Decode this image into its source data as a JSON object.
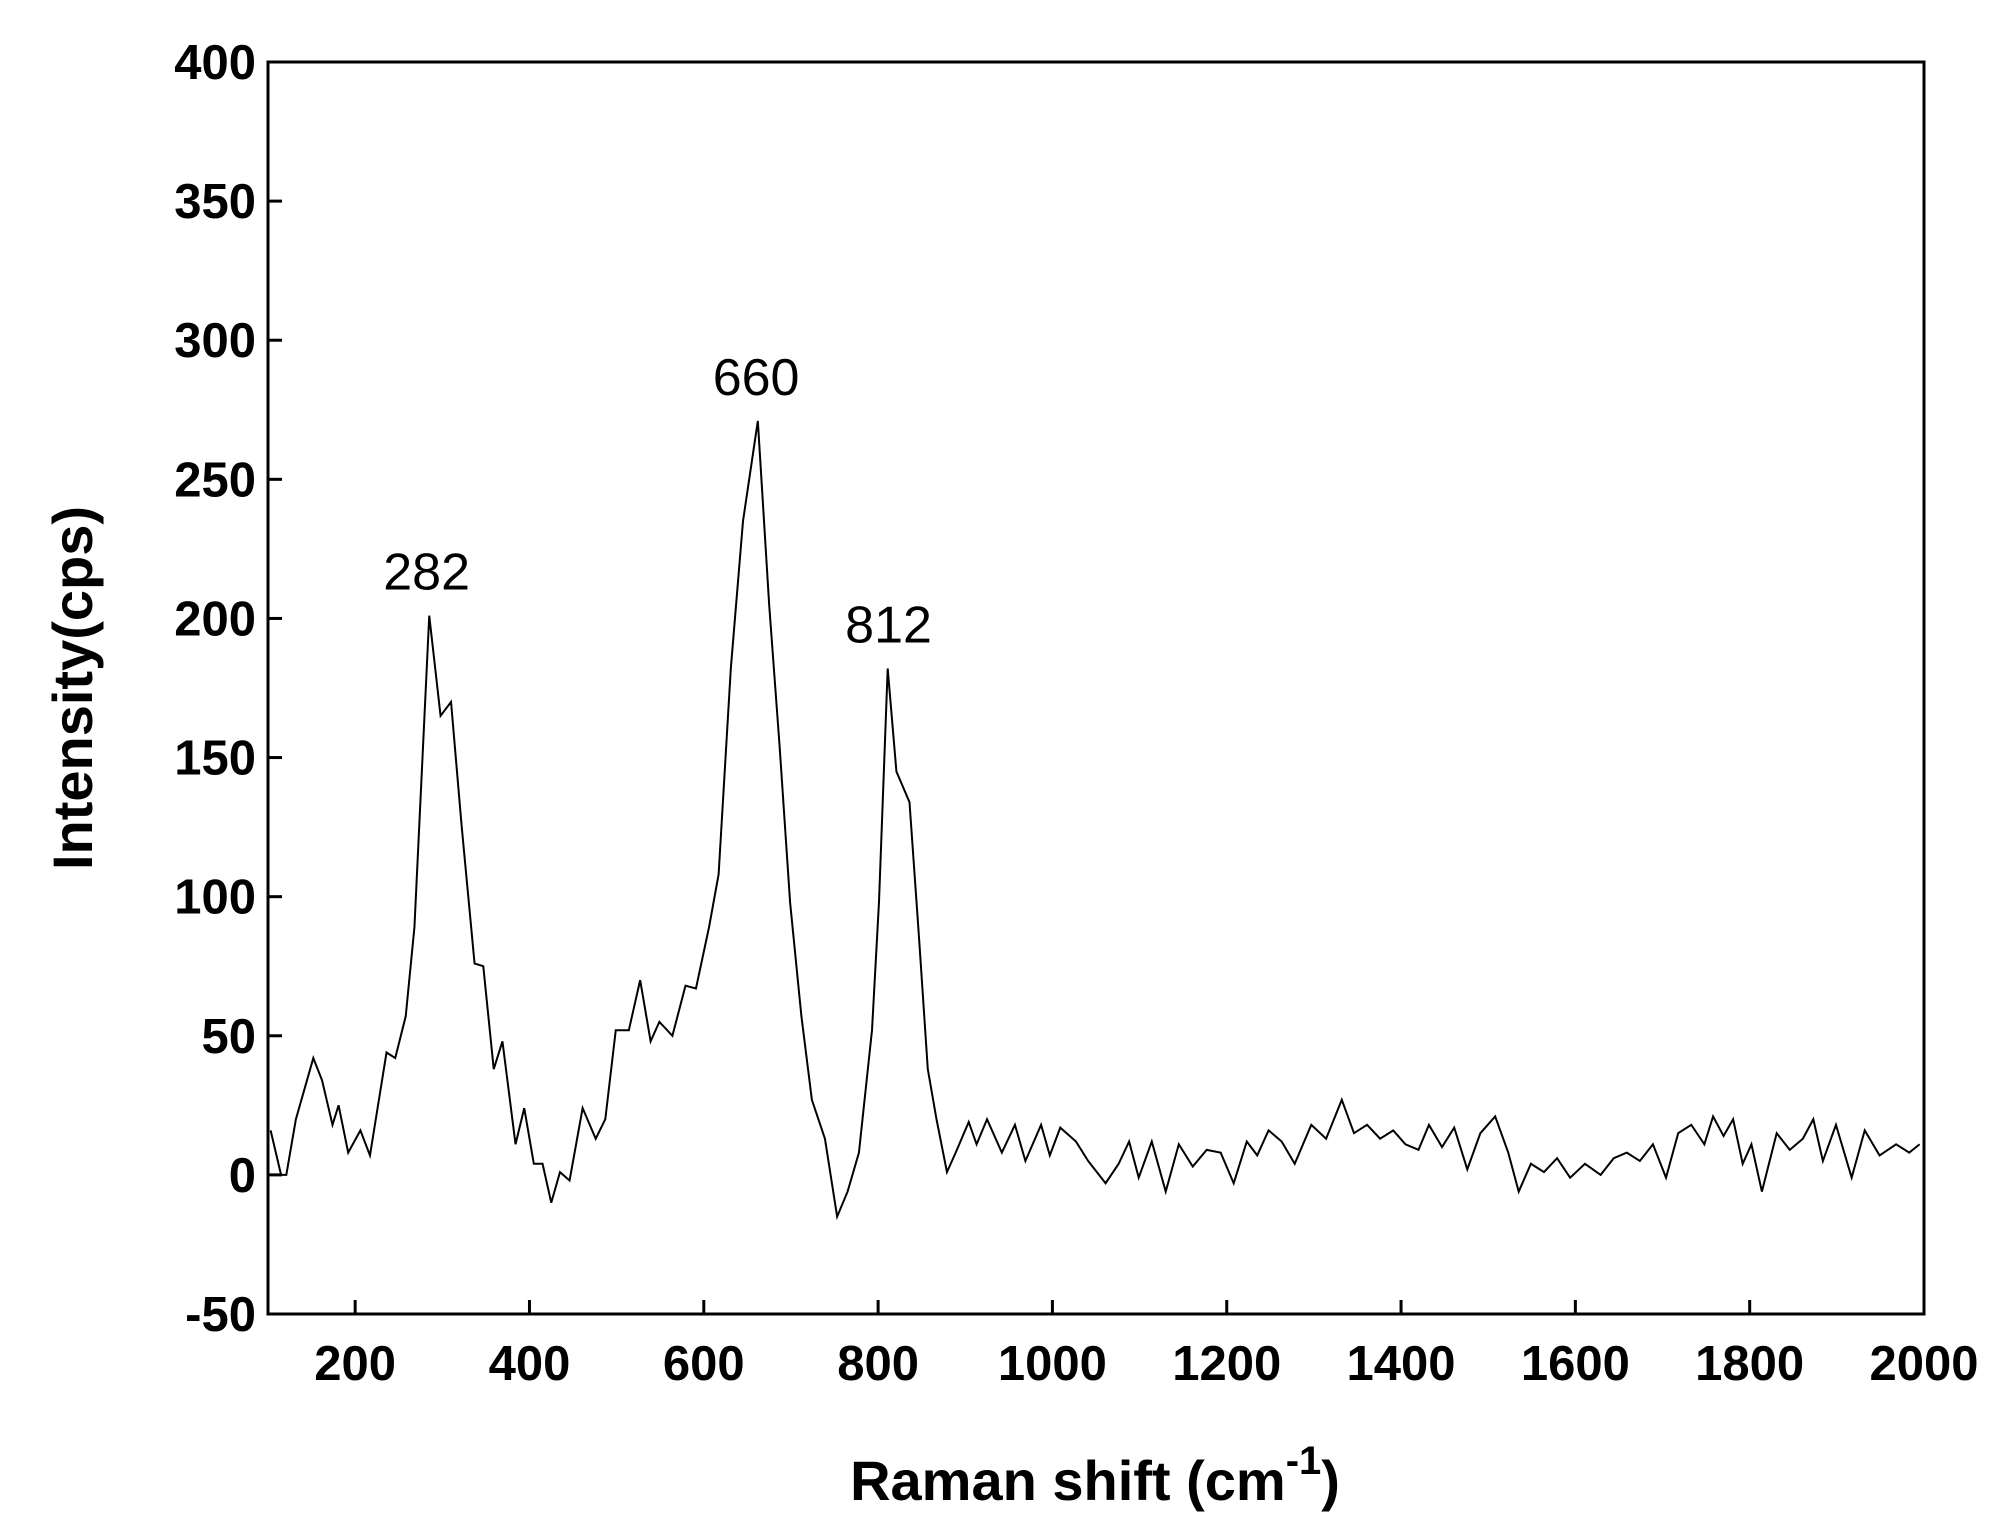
{
  "chart_data": {
    "type": "line",
    "xlabel": "Raman shift (cm",
    "xlabel_sup": "-1",
    "xlabel_end": ")",
    "ylabel": "Intensity(cps)",
    "x": [
      103,
      115,
      121,
      132,
      152,
      162,
      174,
      181,
      192,
      206,
      217,
      236,
      246,
      258,
      268,
      285,
      298,
      310,
      322,
      337,
      347,
      359,
      369,
      384,
      394,
      405,
      415,
      425,
      435,
      446,
      461,
      476,
      487,
      499,
      514,
      527,
      539,
      549,
      564,
      579,
      591,
      606,
      617,
      631,
      645,
      662,
      675,
      687,
      699,
      712,
      724,
      739,
      753,
      765,
      778,
      793,
      801,
      811,
      821,
      836,
      847,
      857,
      867,
      879,
      889,
      904,
      913,
      925,
      942,
      957,
      969,
      987,
      997,
      1009,
      1027,
      1041,
      1061,
      1076,
      1088,
      1099,
      1114,
      1130,
      1145,
      1161,
      1177,
      1193,
      1208,
      1223,
      1235,
      1248,
      1263,
      1278,
      1297,
      1314,
      1332,
      1346,
      1361,
      1376,
      1391,
      1405,
      1420,
      1432,
      1447,
      1461,
      1476,
      1491,
      1508,
      1523,
      1535,
      1549,
      1564,
      1579,
      1594,
      1611,
      1629,
      1644,
      1659,
      1674,
      1689,
      1704,
      1718,
      1733,
      1748,
      1758,
      1770,
      1781,
      1792,
      1802,
      1814,
      1831,
      1846,
      1861,
      1873,
      1884,
      1899,
      1917,
      1932,
      1949,
      1968,
      1983,
      1995
    ],
    "series": [
      {
        "color": "#000000",
        "values": [
          16,
          0,
          0,
          20,
          42,
          34,
          18,
          25,
          8,
          16,
          7,
          44,
          42,
          57,
          89,
          201,
          165,
          170,
          126,
          76,
          75,
          38,
          48,
          11,
          24,
          4,
          4,
          -10,
          1,
          -2,
          24,
          13,
          20,
          52,
          52,
          70,
          48,
          55,
          50,
          68,
          67,
          89,
          108,
          182,
          235,
          271,
          205,
          154,
          98,
          57,
          27,
          13,
          -15,
          -6,
          8,
          52,
          98,
          182,
          145,
          134,
          85,
          38,
          20,
          1,
          8,
          19,
          11,
          20,
          8,
          18,
          5,
          18,
          7,
          17,
          12,
          5,
          -3,
          4,
          12,
          -1,
          12,
          -6,
          11,
          3,
          9,
          8,
          -3,
          12,
          7,
          16,
          12,
          4,
          18,
          13,
          27,
          15,
          18,
          13,
          16,
          11,
          9,
          18,
          10,
          17,
          2,
          15,
          21,
          8,
          -6,
          4,
          1,
          6,
          -1,
          4,
          0,
          6,
          8,
          5,
          11,
          -1,
          15,
          18,
          11,
          21,
          14,
          20,
          4,
          11,
          -6,
          15,
          9,
          13,
          20,
          5,
          18,
          -1,
          16,
          7,
          11,
          8,
          11
        ]
      }
    ],
    "annotations": [
      {
        "text": "282",
        "x": 282
      },
      {
        "text": "660",
        "x": 660
      },
      {
        "text": "812",
        "x": 812
      }
    ],
    "xlim": [
      100,
      2000
    ],
    "xticks": [
      200,
      400,
      600,
      800,
      1000,
      1200,
      1400,
      1600,
      1800,
      2000
    ],
    "ylim": [
      -50,
      400
    ],
    "yticks": [
      -50,
      0,
      50,
      100,
      150,
      200,
      250,
      300,
      350,
      400
    ]
  }
}
